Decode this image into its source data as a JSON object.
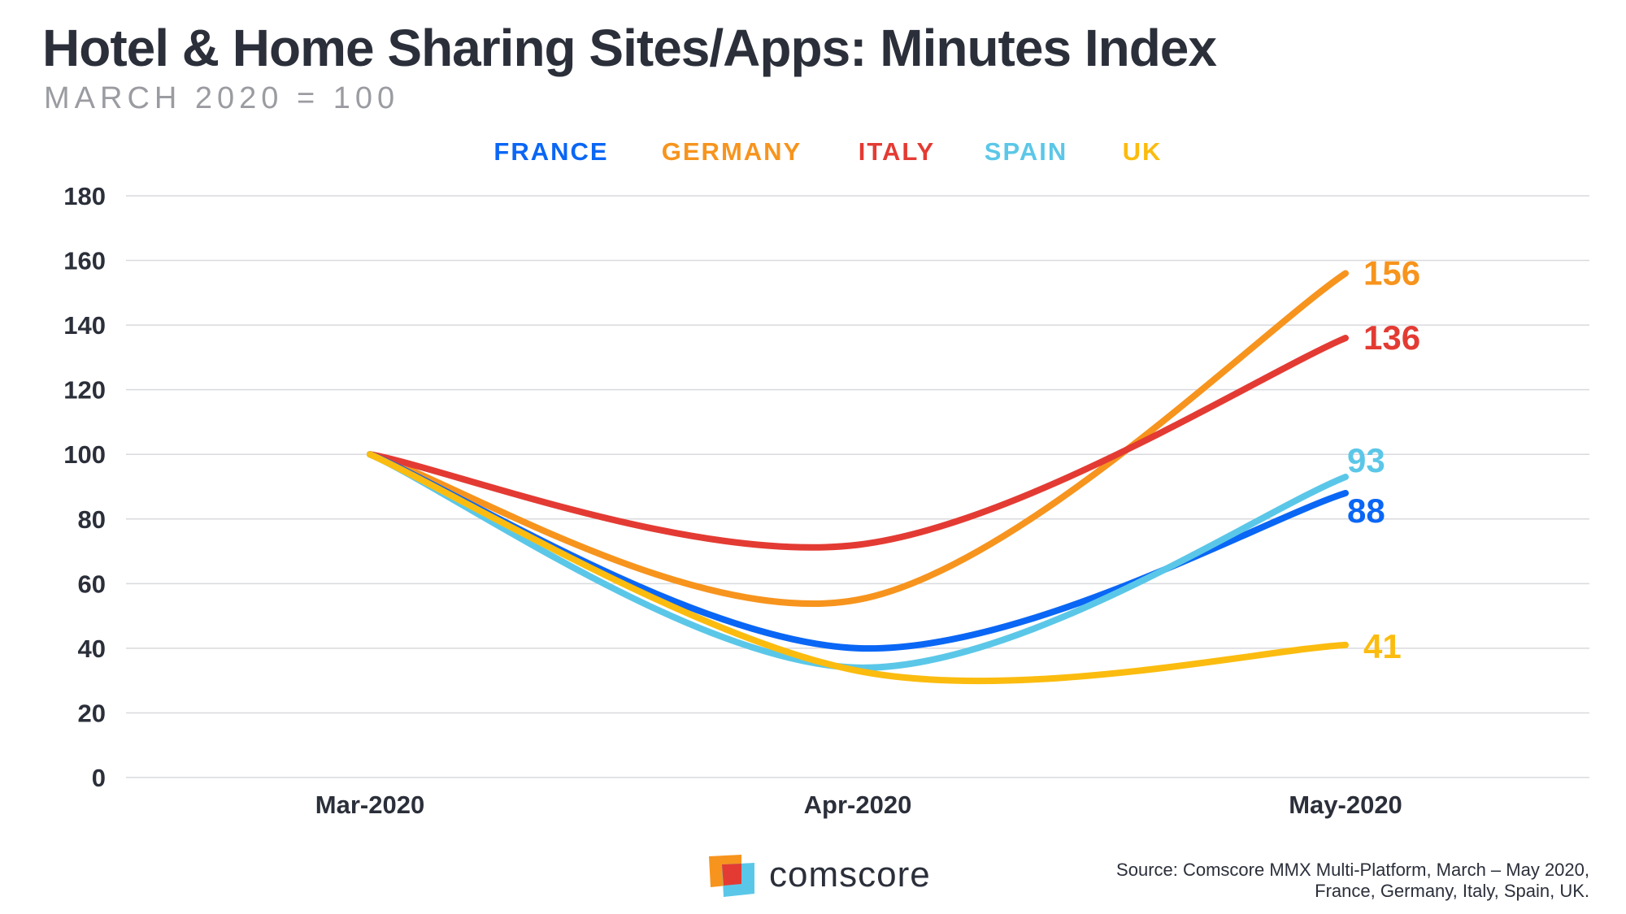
{
  "chart_data": {
    "type": "line",
    "title": "Hotel & Home Sharing Sites/Apps: Minutes Index",
    "subtitle": "MARCH 2020 = 100",
    "categories": [
      "Mar-2020",
      "Apr-2020",
      "May-2020"
    ],
    "ylim": [
      0,
      180
    ],
    "yticks": [
      0,
      20,
      40,
      60,
      80,
      100,
      120,
      140,
      160,
      180
    ],
    "grid": true,
    "legend_position": "top-center",
    "series": [
      {
        "name": "FRANCE",
        "color": "#0a66f5",
        "values": [
          100,
          40,
          88
        ],
        "end_label": "88"
      },
      {
        "name": "GERMANY",
        "color": "#f7941d",
        "values": [
          100,
          55,
          156
        ],
        "end_label": "156"
      },
      {
        "name": "ITALY",
        "color": "#e33b33",
        "values": [
          100,
          72,
          136
        ],
        "end_label": "136"
      },
      {
        "name": "SPAIN",
        "color": "#5bc7e8",
        "values": [
          100,
          34,
          93
        ],
        "end_label": "93"
      },
      {
        "name": "UK",
        "color": "#fbbc0f",
        "values": [
          100,
          33,
          41
        ],
        "end_label": "41"
      }
    ]
  },
  "footer": {
    "brand": "comscore",
    "source_line1": "Source: Comscore MMX Multi-Platform, March – May 2020,",
    "source_line2": "France, Germany, Italy, Spain, UK."
  }
}
